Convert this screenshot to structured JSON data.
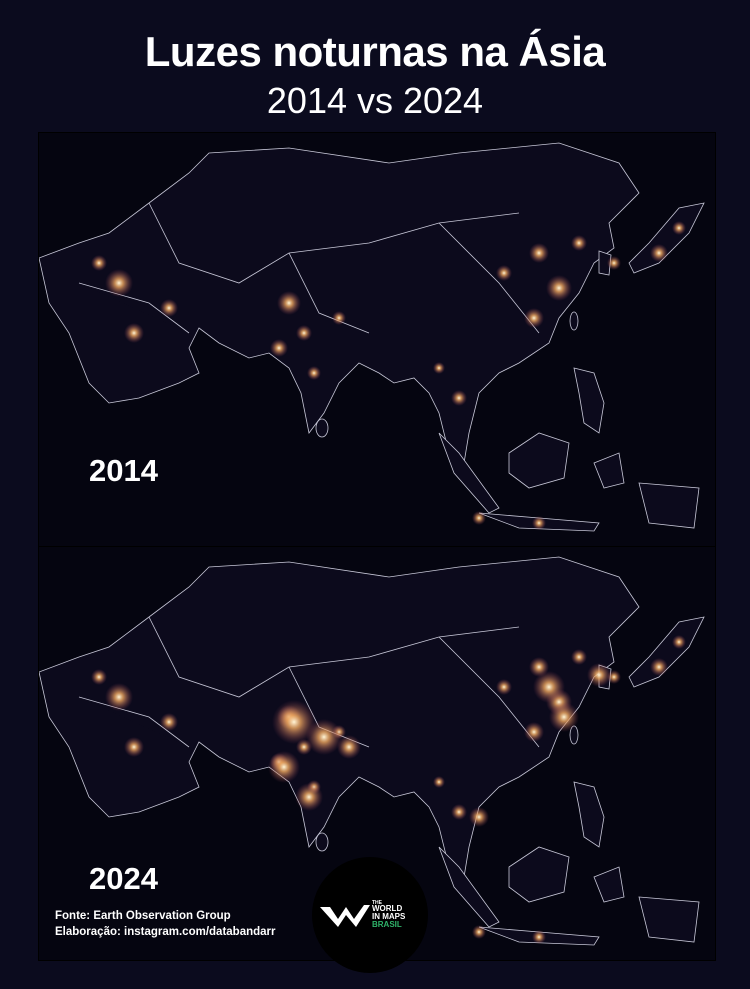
{
  "title": "Luzes noturnas na Ásia",
  "subtitle": "2014 vs 2024",
  "panels": [
    {
      "label": "2014"
    },
    {
      "label": "2024"
    }
  ],
  "footer": {
    "source": "Fonte: Earth Observation Group",
    "credit": "Elaboração: instagram.com/databandarr"
  },
  "logo": {
    "line1": "THE",
    "line2": "WORLD",
    "line3": "IN MAPS",
    "line4": "BRASIL"
  }
}
